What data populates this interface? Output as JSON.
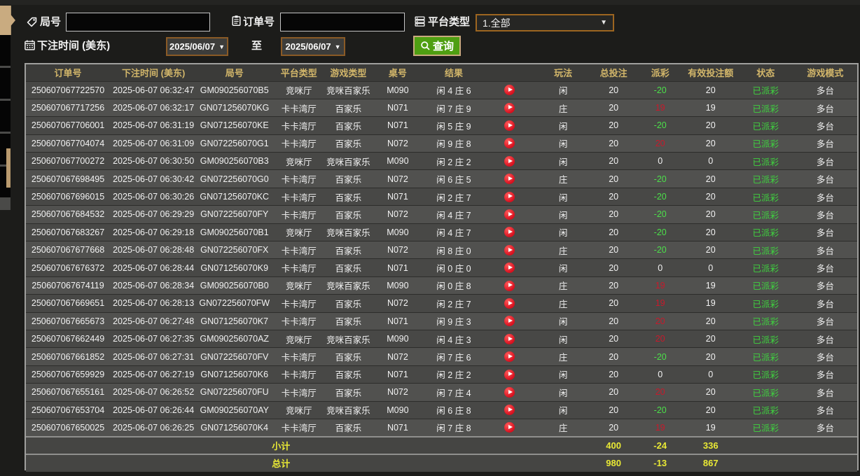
{
  "filters": {
    "game_no": {
      "label": "局号",
      "value": ""
    },
    "order_no": {
      "label": "订单号",
      "value": ""
    },
    "platform": {
      "label": "平台类型",
      "value": "1.全部"
    },
    "bet_time": {
      "label": "下注时间 (美东)",
      "from": "2025/06/07",
      "separator": "至",
      "to": "2025/06/07"
    },
    "search_button": "查询"
  },
  "table": {
    "headers": [
      "订单号",
      "下注时间 (美东)",
      "局号",
      "平台类型",
      "游戏类型",
      "桌号",
      "结果",
      "",
      "玩法",
      "总投注",
      "派彩",
      "有效投注额",
      "状态",
      "游戏模式"
    ],
    "rows": [
      {
        "order_no": "250607067722570",
        "bet_time": "2025-06-07 06:32:47",
        "game_no": "GM090256070B5",
        "platform": "竞咪厅",
        "game_type": "竞咪百家乐",
        "table_no": "M090",
        "result": "闲 4 庄 6",
        "play": "闲",
        "total_bet": "20",
        "payout": "-20",
        "valid_bet": "20",
        "status": "已派彩",
        "mode": "多台"
      },
      {
        "order_no": "250607067717256",
        "bet_time": "2025-06-07 06:32:17",
        "game_no": "GN071256070KG",
        "platform": "卡卡湾厅",
        "game_type": "百家乐",
        "table_no": "N071",
        "result": "闲 7 庄 9",
        "play": "庄",
        "total_bet": "20",
        "payout": "19",
        "valid_bet": "19",
        "status": "已派彩",
        "mode": "多台"
      },
      {
        "order_no": "250607067706001",
        "bet_time": "2025-06-07 06:31:19",
        "game_no": "GN071256070KE",
        "platform": "卡卡湾厅",
        "game_type": "百家乐",
        "table_no": "N071",
        "result": "闲 5 庄 9",
        "play": "闲",
        "total_bet": "20",
        "payout": "-20",
        "valid_bet": "20",
        "status": "已派彩",
        "mode": "多台"
      },
      {
        "order_no": "250607067704074",
        "bet_time": "2025-06-07 06:31:09",
        "game_no": "GN072256070G1",
        "platform": "卡卡湾厅",
        "game_type": "百家乐",
        "table_no": "N072",
        "result": "闲 9 庄 8",
        "play": "闲",
        "total_bet": "20",
        "payout": "20",
        "valid_bet": "20",
        "status": "已派彩",
        "mode": "多台"
      },
      {
        "order_no": "250607067700272",
        "bet_time": "2025-06-07 06:30:50",
        "game_no": "GM090256070B3",
        "platform": "竞咪厅",
        "game_type": "竞咪百家乐",
        "table_no": "M090",
        "result": "闲 2 庄 2",
        "play": "闲",
        "total_bet": "20",
        "payout": "0",
        "valid_bet": "0",
        "status": "已派彩",
        "mode": "多台"
      },
      {
        "order_no": "250607067698495",
        "bet_time": "2025-06-07 06:30:42",
        "game_no": "GN072256070G0",
        "platform": "卡卡湾厅",
        "game_type": "百家乐",
        "table_no": "N072",
        "result": "闲 6 庄 5",
        "play": "庄",
        "total_bet": "20",
        "payout": "-20",
        "valid_bet": "20",
        "status": "已派彩",
        "mode": "多台"
      },
      {
        "order_no": "250607067696015",
        "bet_time": "2025-06-07 06:30:26",
        "game_no": "GN071256070KC",
        "platform": "卡卡湾厅",
        "game_type": "百家乐",
        "table_no": "N071",
        "result": "闲 2 庄 7",
        "play": "闲",
        "total_bet": "20",
        "payout": "-20",
        "valid_bet": "20",
        "status": "已派彩",
        "mode": "多台"
      },
      {
        "order_no": "250607067684532",
        "bet_time": "2025-06-07 06:29:29",
        "game_no": "GN072256070FY",
        "platform": "卡卡湾厅",
        "game_type": "百家乐",
        "table_no": "N072",
        "result": "闲 4 庄 7",
        "play": "闲",
        "total_bet": "20",
        "payout": "-20",
        "valid_bet": "20",
        "status": "已派彩",
        "mode": "多台"
      },
      {
        "order_no": "250607067683267",
        "bet_time": "2025-06-07 06:29:18",
        "game_no": "GM090256070B1",
        "platform": "竞咪厅",
        "game_type": "竞咪百家乐",
        "table_no": "M090",
        "result": "闲 4 庄 7",
        "play": "闲",
        "total_bet": "20",
        "payout": "-20",
        "valid_bet": "20",
        "status": "已派彩",
        "mode": "多台"
      },
      {
        "order_no": "250607067677668",
        "bet_time": "2025-06-07 06:28:48",
        "game_no": "GN072256070FX",
        "platform": "卡卡湾厅",
        "game_type": "百家乐",
        "table_no": "N072",
        "result": "闲 8 庄 0",
        "play": "庄",
        "total_bet": "20",
        "payout": "-20",
        "valid_bet": "20",
        "status": "已派彩",
        "mode": "多台"
      },
      {
        "order_no": "250607067676372",
        "bet_time": "2025-06-07 06:28:44",
        "game_no": "GN071256070K9",
        "platform": "卡卡湾厅",
        "game_type": "百家乐",
        "table_no": "N071",
        "result": "闲 0 庄 0",
        "play": "闲",
        "total_bet": "20",
        "payout": "0",
        "valid_bet": "0",
        "status": "已派彩",
        "mode": "多台"
      },
      {
        "order_no": "250607067674119",
        "bet_time": "2025-06-07 06:28:34",
        "game_no": "GM090256070B0",
        "platform": "竞咪厅",
        "game_type": "竞咪百家乐",
        "table_no": "M090",
        "result": "闲 0 庄 8",
        "play": "庄",
        "total_bet": "20",
        "payout": "19",
        "valid_bet": "19",
        "status": "已派彩",
        "mode": "多台"
      },
      {
        "order_no": "250607067669651",
        "bet_time": "2025-06-07 06:28:13",
        "game_no": "GN072256070FW",
        "platform": "卡卡湾厅",
        "game_type": "百家乐",
        "table_no": "N072",
        "result": "闲 2 庄 7",
        "play": "庄",
        "total_bet": "20",
        "payout": "19",
        "valid_bet": "19",
        "status": "已派彩",
        "mode": "多台"
      },
      {
        "order_no": "250607067665673",
        "bet_time": "2025-06-07 06:27:48",
        "game_no": "GN071256070K7",
        "platform": "卡卡湾厅",
        "game_type": "百家乐",
        "table_no": "N071",
        "result": "闲 9 庄 3",
        "play": "闲",
        "total_bet": "20",
        "payout": "20",
        "valid_bet": "20",
        "status": "已派彩",
        "mode": "多台"
      },
      {
        "order_no": "250607067662449",
        "bet_time": "2025-06-07 06:27:35",
        "game_no": "GM090256070AZ",
        "platform": "竞咪厅",
        "game_type": "竞咪百家乐",
        "table_no": "M090",
        "result": "闲 4 庄 3",
        "play": "闲",
        "total_bet": "20",
        "payout": "20",
        "valid_bet": "20",
        "status": "已派彩",
        "mode": "多台"
      },
      {
        "order_no": "250607067661852",
        "bet_time": "2025-06-07 06:27:31",
        "game_no": "GN072256070FV",
        "platform": "卡卡湾厅",
        "game_type": "百家乐",
        "table_no": "N072",
        "result": "闲 7 庄 6",
        "play": "庄",
        "total_bet": "20",
        "payout": "-20",
        "valid_bet": "20",
        "status": "已派彩",
        "mode": "多台"
      },
      {
        "order_no": "250607067659929",
        "bet_time": "2025-06-07 06:27:19",
        "game_no": "GN071256070K6",
        "platform": "卡卡湾厅",
        "game_type": "百家乐",
        "table_no": "N071",
        "result": "闲 2 庄 2",
        "play": "闲",
        "total_bet": "20",
        "payout": "0",
        "valid_bet": "0",
        "status": "已派彩",
        "mode": "多台"
      },
      {
        "order_no": "250607067655161",
        "bet_time": "2025-06-07 06:26:52",
        "game_no": "GN072256070FU",
        "platform": "卡卡湾厅",
        "game_type": "百家乐",
        "table_no": "N072",
        "result": "闲 7 庄 4",
        "play": "闲",
        "total_bet": "20",
        "payout": "20",
        "valid_bet": "20",
        "status": "已派彩",
        "mode": "多台"
      },
      {
        "order_no": "250607067653704",
        "bet_time": "2025-06-07 06:26:44",
        "game_no": "GM090256070AY",
        "platform": "竞咪厅",
        "game_type": "竞咪百家乐",
        "table_no": "M090",
        "result": "闲 6 庄 8",
        "play": "闲",
        "total_bet": "20",
        "payout": "-20",
        "valid_bet": "20",
        "status": "已派彩",
        "mode": "多台"
      },
      {
        "order_no": "250607067650025",
        "bet_time": "2025-06-07 06:26:25",
        "game_no": "GN071256070K4",
        "platform": "卡卡湾厅",
        "game_type": "百家乐",
        "table_no": "N071",
        "result": "闲 7 庄 8",
        "play": "庄",
        "total_bet": "20",
        "payout": "19",
        "valid_bet": "19",
        "status": "已派彩",
        "mode": "多台"
      }
    ],
    "subtotal": {
      "label": "小计",
      "total_bet": "400",
      "payout": "-24",
      "valid_bet": "336"
    },
    "grand_total": {
      "label": "总计",
      "total_bet": "980",
      "payout": "-13",
      "valid_bet": "867"
    }
  },
  "colors": {
    "header_text": "#d2b66a",
    "totals_text": "#e9e935",
    "payout_positive": "#c8192b",
    "payout_negative": "#4ce04a",
    "status_paid": "#3fd23f",
    "search_button_bg": "#4f9f12",
    "accent_border": "#9c6520"
  }
}
